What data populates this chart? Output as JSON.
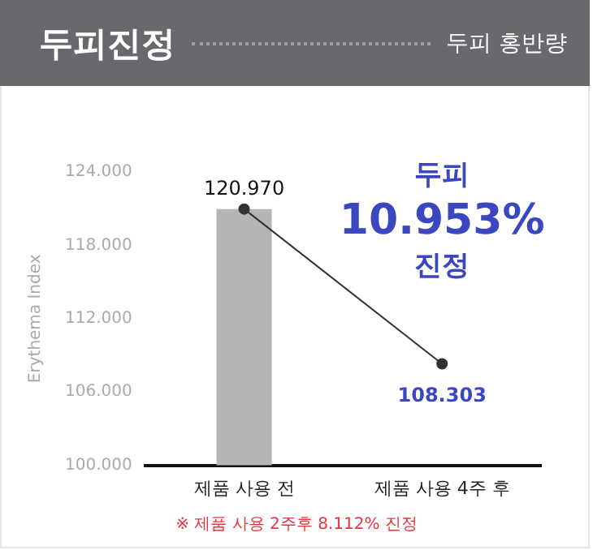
{
  "chart_data": {
    "type": "bar",
    "title": "두피진정",
    "subtitle": "두피 홍반량",
    "ylabel": "Erythema Index",
    "categories": [
      "제품 사용 전",
      "제품 사용 4주 후"
    ],
    "series": [
      {
        "color": "#b5b5b5",
        "values": [
          120.97,
          null
        ],
        "value_labels": [
          "120.970",
          null
        ]
      },
      {
        "type": "line",
        "color": "#333333",
        "values": [
          120.97,
          108.303
        ],
        "value_labels": [
          null,
          "108.303"
        ],
        "marker": "circle"
      }
    ],
    "ylim": [
      100,
      124
    ],
    "yticks": [
      {
        "value": 100,
        "label": "100.000"
      },
      {
        "value": 106,
        "label": "106.000"
      },
      {
        "value": 112,
        "label": "112.000"
      },
      {
        "value": 118,
        "label": "118.000"
      },
      {
        "value": 124,
        "label": "124.000"
      }
    ],
    "legend": false,
    "annotations": [
      "두피",
      "10.953%",
      "진정",
      "※ 제품 사용 2주후 8.112% 진정"
    ]
  }
}
